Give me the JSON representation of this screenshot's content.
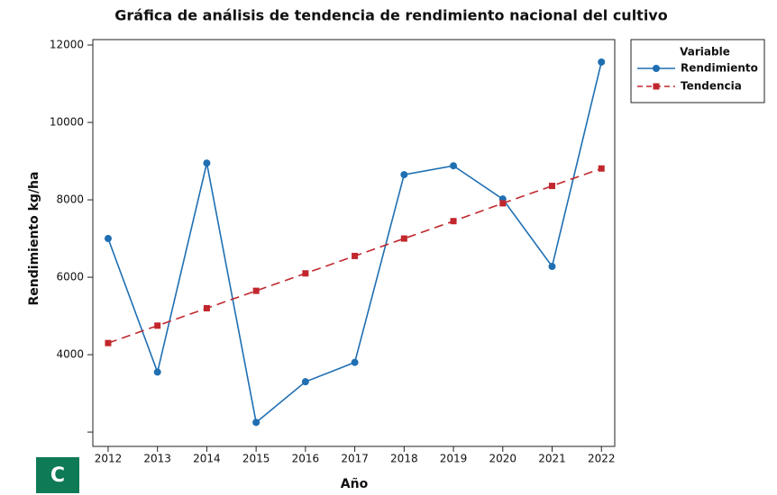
{
  "chart_data": {
    "type": "line",
    "title": "Gráfica de análisis de tendencia de rendimiento nacional del cultivo",
    "x_label": "Año",
    "y_label": "Rendimiento kg/ha",
    "x": [
      2012,
      2013,
      2014,
      2015,
      2016,
      2017,
      2018,
      2019,
      2020,
      2021,
      2022
    ],
    "series": [
      {
        "name": "Rendimiento",
        "color": "#1f6fb2",
        "marker": "circle",
        "dashed": false,
        "values": [
          7000,
          3550,
          8950,
          2250,
          3300,
          3800,
          8650,
          8880,
          8020,
          6280,
          11560
        ]
      },
      {
        "name": "Tendencia",
        "color": "#c1272d",
        "marker": "square",
        "dashed": true,
        "values": [
          4300,
          4750,
          5200,
          5650,
          6100,
          6550,
          7000,
          7450,
          7910,
          8360,
          8810
        ]
      }
    ],
    "xlim": [
      2011.69,
      2022.27
    ],
    "xticks": [
      2012,
      2013,
      2014,
      2015,
      2016,
      2017,
      2018,
      2019,
      2020,
      2021,
      2022
    ],
    "ylim": [
      1630,
      12140
    ],
    "yticks": [
      4000,
      6000,
      8000,
      10000,
      12000
    ],
    "yticks_unlabeled": [
      2000
    ],
    "legend_title": "Variable",
    "legend_position": "outside-top-right",
    "panel_label": "C"
  }
}
